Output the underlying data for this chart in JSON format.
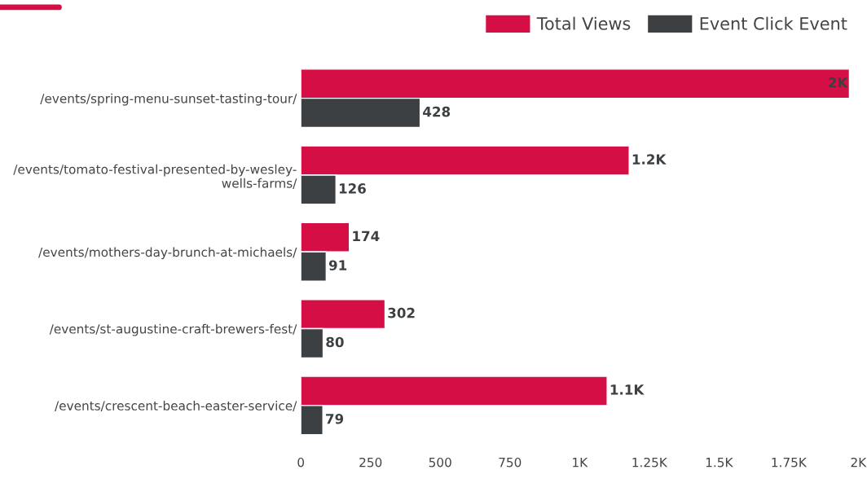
{
  "chart_data": {
    "type": "bar",
    "orientation": "horizontal",
    "categories": [
      "/events/spring-menu-sunset-tasting-tour/",
      "/events/tomato-festival-presented-by-wesley-\nwells-farms/",
      "/events/mothers-day-brunch-at-michaels/",
      "/events/st-augustine-craft-brewers-fest/",
      "/events/crescent-beach-easter-service/"
    ],
    "series": [
      {
        "name": "Total Views",
        "color": "#d60e46",
        "values": [
          1968,
          1178,
          174,
          302,
          1099
        ],
        "value_labels": [
          "2K",
          "1.2K",
          "174",
          "302",
          "1.1K"
        ]
      },
      {
        "name": "Event Click Event",
        "color": "#3c4043",
        "values": [
          428,
          126,
          91,
          80,
          79
        ],
        "value_labels": [
          "428",
          "126",
          "91",
          "80",
          "79"
        ]
      }
    ],
    "xlim": [
      0,
      2000
    ],
    "xticks": [
      0,
      250,
      500,
      750,
      {
        "value": 1000,
        "label": "1K"
      },
      {
        "value": 1250,
        "label": "1.25K"
      },
      {
        "value": 1500,
        "label": "1.5K"
      },
      {
        "value": 1750,
        "label": "1.75K"
      },
      {
        "value": 2000,
        "label": "2K"
      }
    ],
    "grid": false,
    "legend": "top right"
  }
}
